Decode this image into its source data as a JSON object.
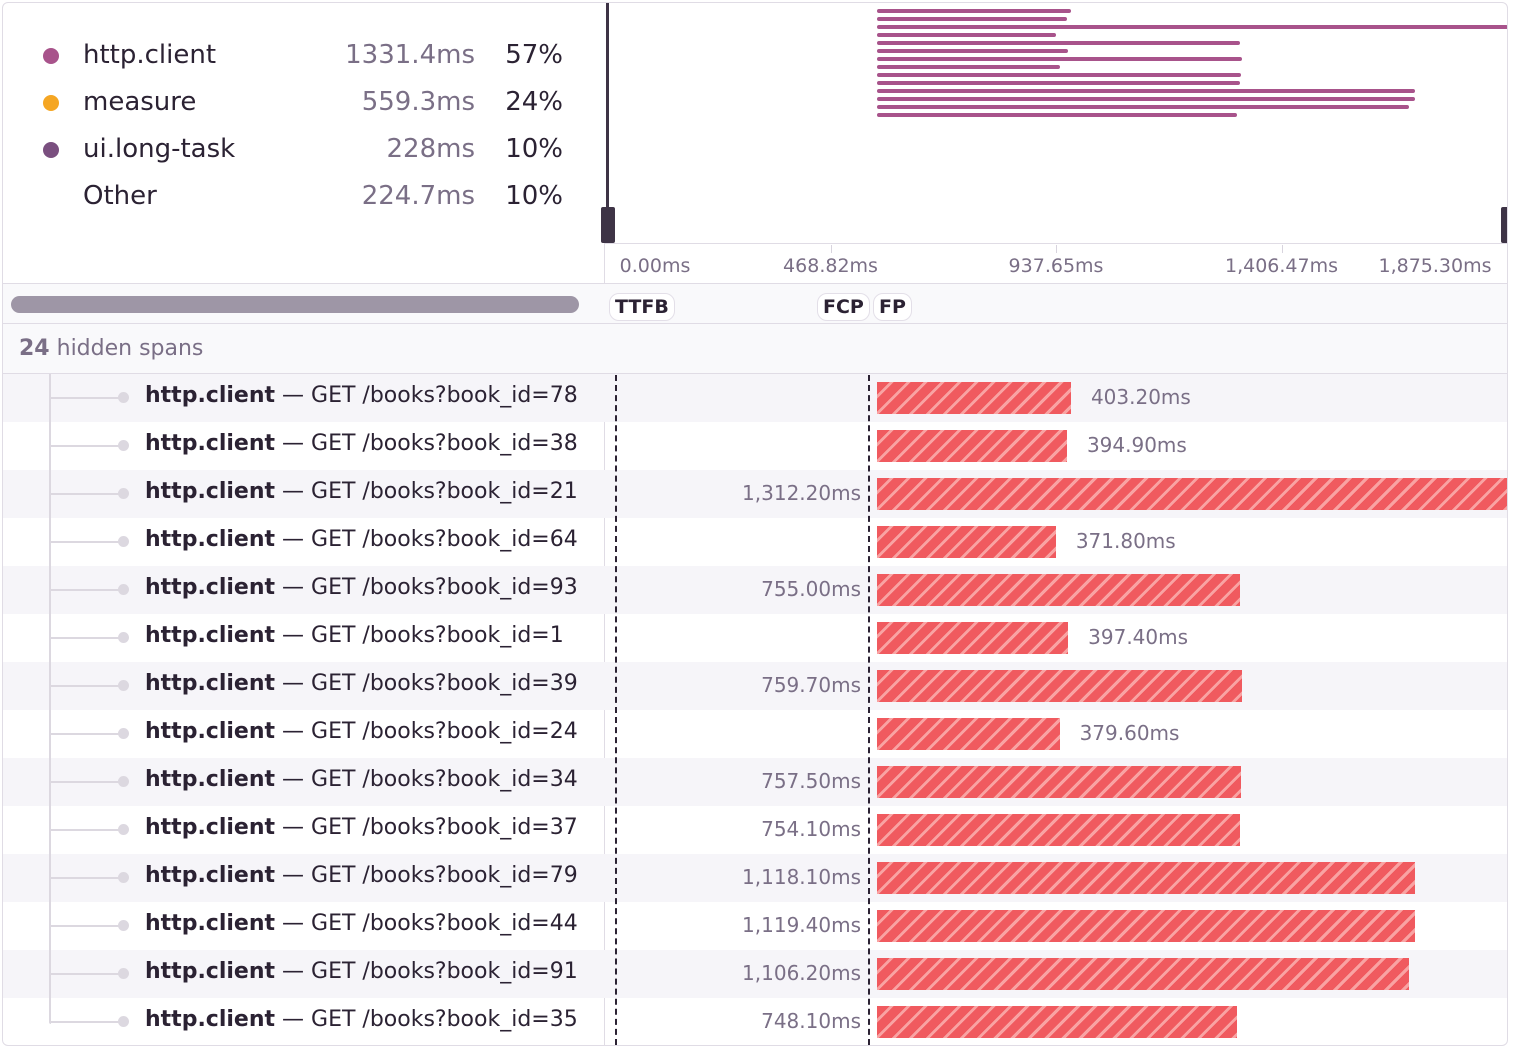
{
  "legend": [
    {
      "name": "http.client",
      "duration": "1331.4ms",
      "percent": "57%",
      "color": "#a8538b"
    },
    {
      "name": "measure",
      "duration": "559.3ms",
      "percent": "24%",
      "color": "#f5a623"
    },
    {
      "name": "ui.long-task",
      "duration": "228ms",
      "percent": "10%",
      "color": "#7a4f7f"
    },
    {
      "name": "Other",
      "duration": "224.7ms",
      "percent": "10%",
      "color": ""
    }
  ],
  "axis": {
    "ticks": [
      {
        "label": "0.00ms",
        "value": 0
      },
      {
        "label": "468.82ms",
        "value": 468.82
      },
      {
        "label": "937.65ms",
        "value": 937.65
      },
      {
        "label": "1,406.47ms",
        "value": 1406.47
      },
      {
        "label": "1,875.30ms",
        "value": 1875.3
      }
    ]
  },
  "marks": [
    {
      "label": "TTFB"
    },
    {
      "label": "FCP"
    },
    {
      "label": "FP"
    }
  ],
  "hidden_spans": {
    "count": "24",
    "label": "hidden spans"
  },
  "span_op": "http.client",
  "span_sep": " — ",
  "bar_color": "#f05a5f",
  "minimap_color": "#a8538b",
  "spans": [
    {
      "desc": "GET /books?book_id=78",
      "duration_ms": 403.2,
      "duration": "403.20ms"
    },
    {
      "desc": "GET /books?book_id=38",
      "duration_ms": 394.9,
      "duration": "394.90ms"
    },
    {
      "desc": "GET /books?book_id=21",
      "duration_ms": 1312.2,
      "duration": "1,312.20ms"
    },
    {
      "desc": "GET /books?book_id=64",
      "duration_ms": 371.8,
      "duration": "371.80ms"
    },
    {
      "desc": "GET /books?book_id=93",
      "duration_ms": 755.0,
      "duration": "755.00ms"
    },
    {
      "desc": "GET /books?book_id=1",
      "duration_ms": 397.4,
      "duration": "397.40ms"
    },
    {
      "desc": "GET /books?book_id=39",
      "duration_ms": 759.7,
      "duration": "759.70ms"
    },
    {
      "desc": "GET /books?book_id=24",
      "duration_ms": 379.6,
      "duration": "379.60ms"
    },
    {
      "desc": "GET /books?book_id=34",
      "duration_ms": 757.5,
      "duration": "757.50ms"
    },
    {
      "desc": "GET /books?book_id=37",
      "duration_ms": 754.1,
      "duration": "754.10ms"
    },
    {
      "desc": "GET /books?book_id=79",
      "duration_ms": 1118.1,
      "duration": "1,118.10ms"
    },
    {
      "desc": "GET /books?book_id=44",
      "duration_ms": 1119.4,
      "duration": "1,119.40ms"
    },
    {
      "desc": "GET /books?book_id=91",
      "duration_ms": 1106.2,
      "duration": "1,106.20ms"
    },
    {
      "desc": "GET /books?book_id=35",
      "duration_ms": 748.1,
      "duration": "748.10ms"
    }
  ]
}
